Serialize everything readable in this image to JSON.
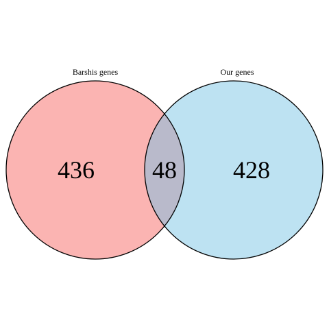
{
  "venn": {
    "sets": [
      {
        "name": "Barshis genes",
        "color": "#FBB4B2"
      },
      {
        "name": "Our genes",
        "color": "#BDE2F2"
      }
    ],
    "counts": {
      "left_only": "436",
      "intersection": "48",
      "right_only": "428"
    },
    "intersection_color": "#B9BACB",
    "outline_color": "#000000"
  }
}
